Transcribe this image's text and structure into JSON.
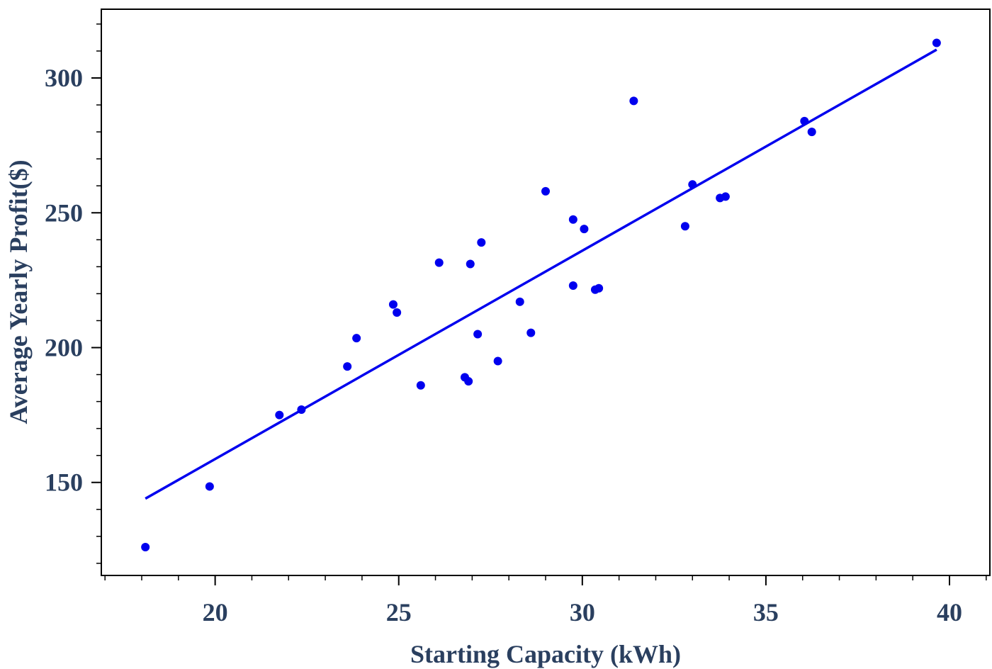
{
  "chart_data": {
    "type": "scatter",
    "title": "",
    "xlabel": "Starting Capacity (kWh)",
    "ylabel": "Average Yearly Profit($)",
    "xlim": [
      16.9,
      41.1
    ],
    "ylim": [
      115.5,
      325.5
    ],
    "xticks": [
      20,
      25,
      30,
      35,
      40
    ],
    "xtick_labels": [
      "20",
      "25",
      "30",
      "35",
      "40"
    ],
    "yticks": [
      150,
      200,
      250,
      300
    ],
    "ytick_labels": [
      "150",
      "200",
      "250",
      "300"
    ],
    "x_minor_step": 1,
    "y_minor_step": 10,
    "grid": false,
    "legend": "none",
    "color": "#0000ee",
    "series": [
      {
        "type": "scatter",
        "points": [
          [
            18.1,
            126.0
          ],
          [
            19.85,
            148.5
          ],
          [
            21.75,
            175.0
          ],
          [
            22.35,
            177.0
          ],
          [
            23.6,
            193.0
          ],
          [
            23.85,
            203.5
          ],
          [
            24.85,
            216.0
          ],
          [
            24.95,
            213.0
          ],
          [
            25.6,
            186.0
          ],
          [
            26.1,
            231.5
          ],
          [
            26.8,
            189.0
          ],
          [
            26.9,
            187.5
          ],
          [
            26.95,
            231.0
          ],
          [
            27.15,
            205.0
          ],
          [
            27.25,
            239.0
          ],
          [
            27.7,
            195.0
          ],
          [
            28.3,
            217.0
          ],
          [
            28.6,
            205.5
          ],
          [
            29.0,
            258.0
          ],
          [
            29.75,
            223.0
          ],
          [
            29.75,
            247.5
          ],
          [
            30.05,
            244.0
          ],
          [
            30.35,
            221.5
          ],
          [
            30.45,
            222.0
          ],
          [
            31.4,
            291.5
          ],
          [
            32.8,
            245.0
          ],
          [
            33.0,
            260.5
          ],
          [
            33.75,
            255.5
          ],
          [
            33.9,
            256.0
          ],
          [
            36.05,
            284.0
          ],
          [
            36.25,
            280.0
          ],
          [
            39.65,
            313.0
          ]
        ]
      },
      {
        "type": "line",
        "points": [
          [
            18.1,
            144.0
          ],
          [
            39.65,
            310.5
          ]
        ]
      }
    ]
  }
}
